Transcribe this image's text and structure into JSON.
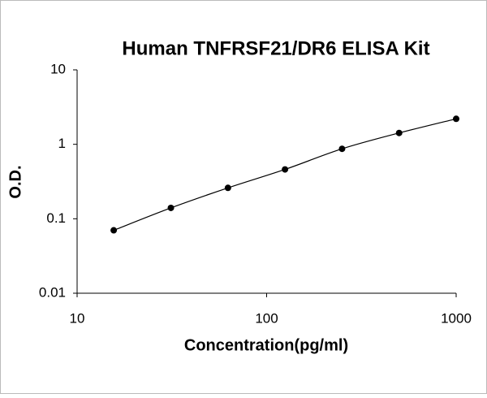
{
  "chart_data": {
    "type": "scatter",
    "title": "Human TNFRSF21/DR6  ELISA Kit",
    "x_label": "Concentration(pg/ml)",
    "y_label": "O.D.",
    "x": [
      15.6,
      31.25,
      62.5,
      125,
      250,
      500,
      1000
    ],
    "series": [
      {
        "color": "#000000",
        "values": [
          0.07,
          0.14,
          0.26,
          0.46,
          0.87,
          1.42,
          2.2
        ]
      }
    ],
    "x_log": true,
    "y_log": true,
    "fit_line": true,
    "xlim": [
      10,
      1000
    ],
    "ylim": [
      0.01,
      10
    ],
    "xticks": [
      10,
      100,
      1000
    ],
    "yticks": [
      0.01,
      0.1,
      1,
      10
    ]
  }
}
